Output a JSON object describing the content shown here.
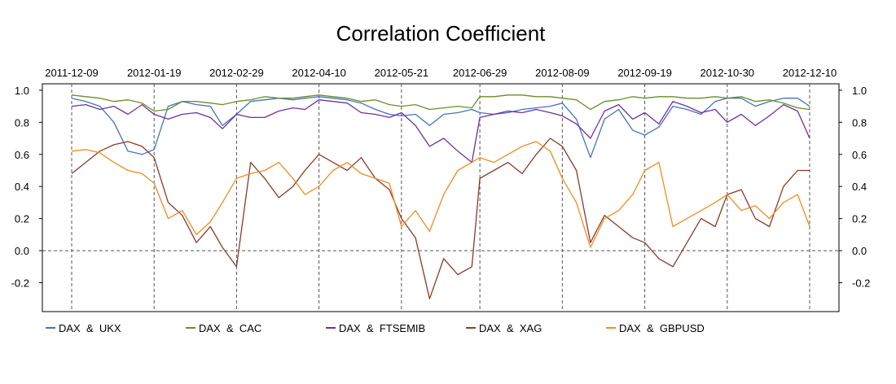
{
  "chart_data": {
    "type": "line",
    "title": "Correlation Coefficient",
    "x_tick_labels": [
      "2011-12-09",
      "2012-01-19",
      "2012-02-29",
      "2012-04-10",
      "2012-05-21",
      "2012-06-29",
      "2012-08-09",
      "2012-09-19",
      "2012-10-30",
      "2012-12-10"
    ],
    "x": [
      "2011-12-09",
      "2011-12-16",
      "2011-12-23",
      "2011-12-30",
      "2012-01-06",
      "2012-01-13",
      "2012-01-19",
      "2012-01-26",
      "2012-02-02",
      "2012-02-09",
      "2012-02-16",
      "2012-02-22",
      "2012-02-29",
      "2012-03-07",
      "2012-03-14",
      "2012-03-21",
      "2012-03-28",
      "2012-04-03",
      "2012-04-10",
      "2012-04-17",
      "2012-04-24",
      "2012-05-01",
      "2012-05-08",
      "2012-05-15",
      "2012-05-21",
      "2012-05-28",
      "2012-06-04",
      "2012-06-11",
      "2012-06-18",
      "2012-06-25",
      "2012-06-29",
      "2012-07-06",
      "2012-07-13",
      "2012-07-20",
      "2012-07-27",
      "2012-08-03",
      "2012-08-09",
      "2012-08-16",
      "2012-08-23",
      "2012-08-30",
      "2012-09-06",
      "2012-09-13",
      "2012-09-19",
      "2012-09-26",
      "2012-10-03",
      "2012-10-10",
      "2012-10-17",
      "2012-10-24",
      "2012-10-30",
      "2012-11-06",
      "2012-11-13",
      "2012-11-20",
      "2012-11-27",
      "2012-12-04",
      "2012-12-10"
    ],
    "ylim": [
      -0.38,
      1.04
    ],
    "y_ticks": [
      -0.2,
      0.0,
      0.2,
      0.4,
      0.6,
      0.8,
      1.0
    ],
    "y_tick_labels": [
      "-0.2",
      "0.0",
      "0.2",
      "0.4",
      "0.6",
      "0.8",
      "1.0"
    ],
    "zero_line": true,
    "vertical_gridlines": true,
    "legend_position": "bottom",
    "series": [
      {
        "name": "DAX  &  UKX",
        "color": "#4472C4",
        "values": [
          0.95,
          0.93,
          0.9,
          0.8,
          0.62,
          0.6,
          0.63,
          0.9,
          0.93,
          0.91,
          0.9,
          0.78,
          0.85,
          0.93,
          0.94,
          0.95,
          0.94,
          0.95,
          0.96,
          0.95,
          0.94,
          0.92,
          0.88,
          0.85,
          0.84,
          0.85,
          0.78,
          0.85,
          0.86,
          0.88,
          0.86,
          0.85,
          0.86,
          0.88,
          0.89,
          0.9,
          0.92,
          0.82,
          0.58,
          0.82,
          0.88,
          0.75,
          0.72,
          0.77,
          0.9,
          0.88,
          0.85,
          0.93,
          0.95,
          0.95,
          0.9,
          0.93,
          0.95,
          0.95,
          0.9
        ]
      },
      {
        "name": "DAX  &  CAC",
        "color": "#6B8E23",
        "values": [
          0.97,
          0.96,
          0.95,
          0.93,
          0.94,
          0.92,
          0.87,
          0.88,
          0.93,
          0.93,
          0.92,
          0.91,
          0.93,
          0.94,
          0.96,
          0.95,
          0.95,
          0.96,
          0.97,
          0.96,
          0.95,
          0.93,
          0.94,
          0.91,
          0.9,
          0.91,
          0.88,
          0.89,
          0.9,
          0.89,
          0.96,
          0.96,
          0.97,
          0.97,
          0.96,
          0.96,
          0.95,
          0.94,
          0.88,
          0.93,
          0.94,
          0.96,
          0.95,
          0.96,
          0.96,
          0.95,
          0.95,
          0.96,
          0.95,
          0.96,
          0.93,
          0.94,
          0.92,
          0.89,
          0.88
        ]
      },
      {
        "name": "DAX  &  FTSEMIB",
        "color": "#7030A0",
        "values": [
          0.9,
          0.91,
          0.88,
          0.9,
          0.85,
          0.91,
          0.85,
          0.82,
          0.85,
          0.86,
          0.83,
          0.76,
          0.85,
          0.83,
          0.83,
          0.87,
          0.89,
          0.88,
          0.94,
          0.93,
          0.92,
          0.86,
          0.85,
          0.83,
          0.86,
          0.78,
          0.65,
          0.7,
          0.62,
          0.55,
          0.83,
          0.85,
          0.87,
          0.86,
          0.88,
          0.86,
          0.84,
          0.79,
          0.7,
          0.87,
          0.91,
          0.82,
          0.86,
          0.79,
          0.93,
          0.9,
          0.86,
          0.88,
          0.8,
          0.85,
          0.78,
          0.84,
          0.91,
          0.87,
          0.7
        ]
      },
      {
        "name": "DAX  &  XAG",
        "color": "#8B3A2A",
        "values": [
          0.48,
          0.55,
          0.62,
          0.66,
          0.68,
          0.65,
          0.58,
          0.3,
          0.22,
          0.05,
          0.15,
          0.02,
          -0.1,
          0.55,
          0.45,
          0.33,
          0.4,
          0.5,
          0.6,
          0.55,
          0.5,
          0.58,
          0.45,
          0.38,
          0.2,
          0.08,
          -0.3,
          -0.05,
          -0.15,
          -0.1,
          0.45,
          0.5,
          0.55,
          0.48,
          0.6,
          0.7,
          0.65,
          0.5,
          0.05,
          0.22,
          0.15,
          0.08,
          0.05,
          -0.05,
          -0.1,
          0.05,
          0.2,
          0.15,
          0.35,
          0.38,
          0.2,
          0.15,
          0.4,
          0.5,
          0.5
        ]
      },
      {
        "name": "DAX  &  GBPUSD",
        "color": "#F28C1E",
        "values": [
          0.62,
          0.63,
          0.61,
          0.55,
          0.5,
          0.48,
          0.42,
          0.2,
          0.25,
          0.1,
          0.18,
          0.3,
          0.45,
          0.48,
          0.5,
          0.55,
          0.45,
          0.35,
          0.4,
          0.5,
          0.55,
          0.48,
          0.45,
          0.42,
          0.15,
          0.25,
          0.12,
          0.35,
          0.5,
          0.55,
          0.58,
          0.55,
          0.6,
          0.65,
          0.68,
          0.62,
          0.45,
          0.3,
          0.02,
          0.2,
          0.25,
          0.35,
          0.5,
          0.55,
          0.15,
          0.2,
          0.25,
          0.3,
          0.35,
          0.25,
          0.28,
          0.2,
          0.3,
          0.35,
          0.15
        ]
      }
    ]
  }
}
